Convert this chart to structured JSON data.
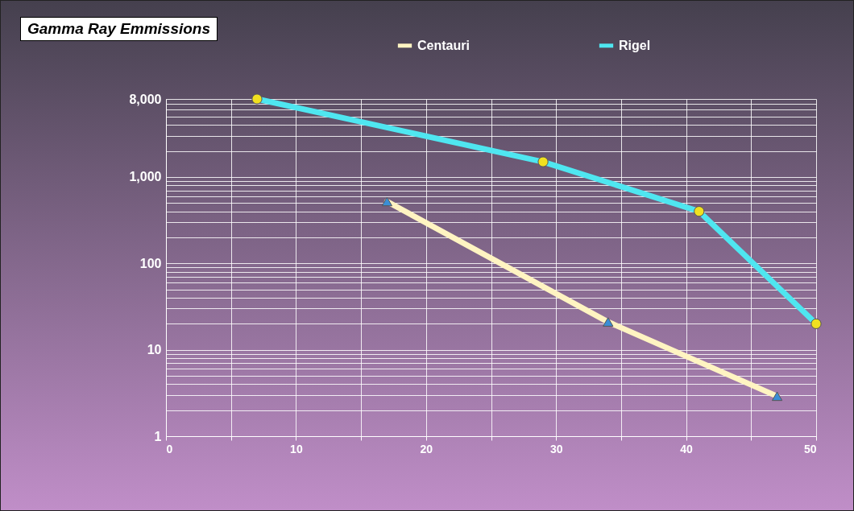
{
  "chart_data": {
    "type": "line",
    "title": "Gamma Ray Emmissions",
    "log": "y",
    "grid": true,
    "legend": "top",
    "xlim": [
      0,
      50
    ],
    "xticks": [
      0,
      {
        "value": 5,
        "label": null
      },
      10,
      {
        "value": 15,
        "label": null
      },
      20,
      {
        "value": 25,
        "label": null
      },
      30,
      {
        "value": 35,
        "label": null
      },
      40,
      {
        "value": 45,
        "label": null
      },
      50
    ],
    "ylim": [
      1,
      8000
    ],
    "yticks": [
      1,
      {
        "value": 2,
        "label": null
      },
      {
        "value": 3,
        "label": null
      },
      {
        "value": 4,
        "label": null
      },
      {
        "value": 5,
        "label": null
      },
      {
        "value": 6,
        "label": null
      },
      {
        "value": 7,
        "label": null
      },
      {
        "value": 8,
        "label": null
      },
      {
        "value": 9,
        "label": null
      },
      10,
      {
        "value": 20,
        "label": null
      },
      {
        "value": 30,
        "label": null
      },
      {
        "value": 40,
        "label": null
      },
      {
        "value": 50,
        "label": null
      },
      {
        "value": 60,
        "label": null
      },
      {
        "value": 70,
        "label": null
      },
      {
        "value": 80,
        "label": null
      },
      {
        "value": 90,
        "label": null
      },
      100,
      {
        "value": 200,
        "label": null
      },
      {
        "value": 300,
        "label": null
      },
      {
        "value": 400,
        "label": null
      },
      {
        "value": 500,
        "label": null
      },
      {
        "value": 600,
        "label": null
      },
      {
        "value": 700,
        "label": null
      },
      {
        "value": 800,
        "label": null
      },
      {
        "value": 900,
        "label": null
      },
      {
        "value": 1000,
        "label": "1,000"
      },
      {
        "value": 2000,
        "label": null
      },
      {
        "value": 3000,
        "label": null
      },
      {
        "value": 4000,
        "label": null
      },
      {
        "value": 5000,
        "label": null
      },
      {
        "value": 6000,
        "label": null
      },
      {
        "value": 7000,
        "label": null
      },
      {
        "value": 8000,
        "label": "8,000"
      }
    ],
    "series": [
      {
        "name": "Centauri",
        "color": "#fff4c2",
        "marker": "triangle",
        "x": [
          17,
          34,
          47
        ],
        "values": [
          520,
          21,
          2.9
        ]
      },
      {
        "name": "Rigel",
        "color": "#4fe6f0",
        "marker": "circle",
        "x": [
          7,
          29,
          41,
          50
        ],
        "values": [
          8000,
          1500,
          400,
          20
        ]
      }
    ]
  }
}
